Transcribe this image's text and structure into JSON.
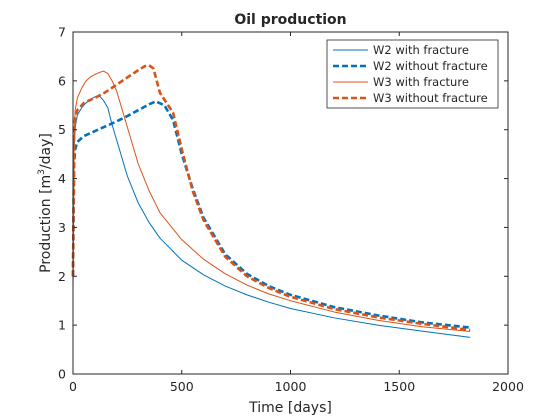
{
  "chart_data": {
    "type": "line",
    "title": "Oil production",
    "xlabel": "Time [days]",
    "ylabel": "Production [m³/day]",
    "ylabel_parts": {
      "pre": "Production [m",
      "sup": "3",
      "post": "/day]"
    },
    "xlim": [
      0,
      2000
    ],
    "ylim": [
      0,
      7
    ],
    "xticks": [
      0,
      500,
      1000,
      1500,
      2000
    ],
    "yticks": [
      0,
      1,
      2,
      3,
      4,
      5,
      6,
      7
    ],
    "grid": false,
    "legend_position": "top-right",
    "series": [
      {
        "name": "W2 with fracture",
        "color": "#0072BD",
        "style": "solid",
        "x": [
          0,
          5,
          10,
          20,
          40,
          60,
          80,
          100,
          120,
          140,
          160,
          180,
          200,
          250,
          300,
          350,
          400,
          500,
          600,
          700,
          800,
          900,
          1000,
          1200,
          1400,
          1600,
          1826
        ],
        "y": [
          1.8,
          4.6,
          5.05,
          5.3,
          5.45,
          5.55,
          5.62,
          5.67,
          5.7,
          5.6,
          5.45,
          5.1,
          4.8,
          4.05,
          3.5,
          3.1,
          2.78,
          2.33,
          2.03,
          1.8,
          1.62,
          1.47,
          1.34,
          1.15,
          1.0,
          0.88,
          0.75
        ]
      },
      {
        "name": "W2 without fracture",
        "color": "#0072BD",
        "style": "dashed",
        "x": [
          0,
          5,
          10,
          20,
          50,
          100,
          150,
          200,
          250,
          300,
          350,
          380,
          420,
          460,
          500,
          550,
          600,
          700,
          800,
          900,
          1000,
          1200,
          1400,
          1600,
          1826
        ],
        "y": [
          2.0,
          4.3,
          4.6,
          4.75,
          4.87,
          4.97,
          5.07,
          5.17,
          5.28,
          5.4,
          5.52,
          5.58,
          5.5,
          5.2,
          4.5,
          3.8,
          3.2,
          2.45,
          2.05,
          1.8,
          1.62,
          1.37,
          1.2,
          1.06,
          0.95
        ]
      },
      {
        "name": "W3 with fracture",
        "color": "#D95319",
        "style": "solid",
        "x": [
          0,
          5,
          10,
          20,
          40,
          60,
          80,
          100,
          120,
          140,
          160,
          180,
          200,
          250,
          300,
          350,
          400,
          500,
          600,
          700,
          800,
          900,
          1000,
          1200,
          1400,
          1600,
          1826
        ],
        "y": [
          1.8,
          4.8,
          5.4,
          5.65,
          5.85,
          6.0,
          6.08,
          6.13,
          6.17,
          6.2,
          6.15,
          6.0,
          5.8,
          5.05,
          4.3,
          3.75,
          3.3,
          2.75,
          2.35,
          2.05,
          1.82,
          1.64,
          1.5,
          1.27,
          1.1,
          0.97,
          0.87
        ]
      },
      {
        "name": "W3 without fracture",
        "color": "#D95319",
        "style": "dashed",
        "x": [
          0,
          5,
          10,
          20,
          50,
          100,
          150,
          200,
          250,
          300,
          330,
          350,
          370,
          400,
          430,
          460,
          500,
          550,
          600,
          700,
          800,
          900,
          1000,
          1200,
          1400,
          1600,
          1826
        ],
        "y": [
          2.0,
          4.9,
          5.25,
          5.4,
          5.55,
          5.65,
          5.77,
          5.92,
          6.07,
          6.22,
          6.3,
          6.32,
          6.25,
          5.75,
          5.55,
          5.35,
          4.6,
          3.75,
          3.15,
          2.4,
          2.0,
          1.76,
          1.58,
          1.33,
          1.16,
          1.03,
          0.9
        ]
      }
    ]
  }
}
